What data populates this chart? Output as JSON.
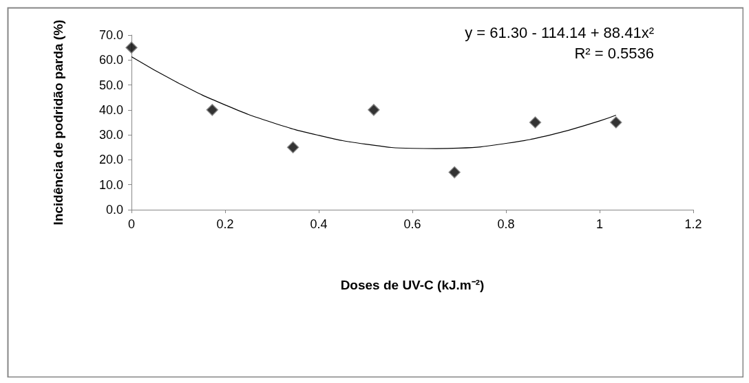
{
  "chart_data": {
    "type": "scatter",
    "xlabel": "Doses de UV-C (kJ.m⁻²)",
    "ylabel": "Incidência de podridão parda (%)",
    "annotations": [
      "y = 61.30 - 114.14 + 88.41x²",
      "R² = 0.5536"
    ],
    "series": [
      {
        "color": "#000000",
        "marker": "diamond",
        "x": [
          0,
          0.1725,
          0.345,
          0.5175,
          0.69,
          0.8625,
          1.035
        ],
        "values": [
          65,
          40,
          25,
          40,
          15,
          35,
          35
        ]
      },
      {
        "type": "line",
        "color": "#000000",
        "marker": "none",
        "line_style": "solid",
        "x": [
          0,
          0.1,
          0.2,
          0.3,
          0.4,
          0.5,
          0.6,
          0.65,
          0.7,
          0.8,
          0.9,
          1.0,
          1.035
        ],
        "values": [
          61.3,
          50.8,
          42.0,
          35.0,
          29.8,
          26.3,
          24.6,
          24.5,
          24.7,
          26.6,
          30.2,
          35.6,
          37.9
        ]
      }
    ],
    "xlim": [
      0,
      1.2
    ],
    "xticks": [
      {
        "value": 0,
        "label": "0"
      },
      {
        "value": 0.2,
        "label": "0.2"
      },
      {
        "value": 0.4,
        "label": "0.4"
      },
      {
        "value": 0.6,
        "label": "0.6"
      },
      {
        "value": 0.8,
        "label": "0.8"
      },
      {
        "value": 1,
        "label": "1"
      },
      {
        "value": 1.2,
        "label": "1.2"
      }
    ],
    "ylim": [
      0,
      70
    ],
    "yticks": [
      {
        "value": 0,
        "label": "0.0"
      },
      {
        "value": 10,
        "label": "10.0"
      },
      {
        "value": 20,
        "label": "20.0"
      },
      {
        "value": 30,
        "label": "30.0"
      },
      {
        "value": 40,
        "label": "40.0"
      },
      {
        "value": 50,
        "label": "50.0"
      },
      {
        "value": 60,
        "label": "60.0"
      },
      {
        "value": 70,
        "label": "70.0"
      }
    ],
    "grid": false
  }
}
